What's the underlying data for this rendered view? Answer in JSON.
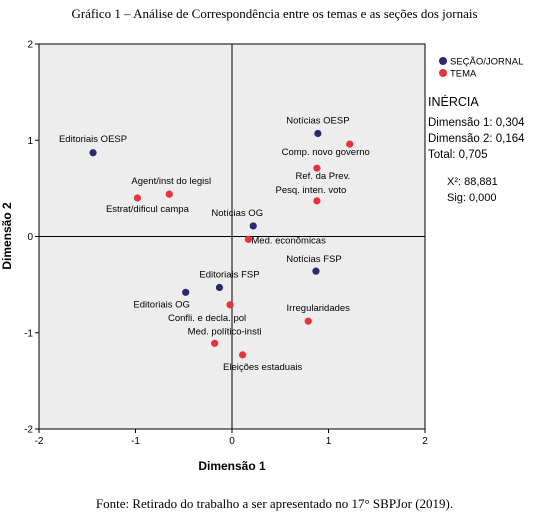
{
  "caption_top": "Gráfico 1 – Análise de Correspondência entre os temas e as seções dos jornais",
  "caption_bottom": "Fonte: Retirado do trabalho a ser apresentado no 17° SBPJor (2019).",
  "inertia": {
    "title": "INÉRCIA",
    "dim1": "Dimensão 1: 0,304",
    "dim2": "Dimensão 2: 0,164",
    "total": "Total: 0,705",
    "chi": "X²: 88,881",
    "sig": "Sig: 0,000"
  },
  "colors": {
    "secao": "#2a2a6e",
    "tema": "#e8323c",
    "plot_bg": "#ededed"
  },
  "chart_data": {
    "type": "scatter",
    "xlabel": "Dimensão 1",
    "ylabel": "Dimensão 2",
    "xlim": [
      -2,
      2
    ],
    "ylim": [
      -2,
      2
    ],
    "xticks": [
      "-2",
      "-1",
      "0",
      "1",
      "2"
    ],
    "yticks": [
      "2",
      "1",
      "0",
      "-1",
      "-2"
    ],
    "grid": false,
    "legend_position": "top-right",
    "series": [
      {
        "name": "SEÇÃO/JORNAL",
        "points": [
          {
            "label": "Editoriais OESP",
            "x": -1.44,
            "y": 0.87
          },
          {
            "label": "Notícias OESP",
            "x": 0.89,
            "y": 1.07
          },
          {
            "label": "Notícias OG",
            "x": 0.22,
            "y": 0.11
          },
          {
            "label": "Notícias FSP",
            "x": 0.87,
            "y": -0.36
          },
          {
            "label": "Editoriais FSP",
            "x": -0.13,
            "y": -0.53
          },
          {
            "label": "Editoriais OG",
            "x": -0.48,
            "y": -0.58
          }
        ]
      },
      {
        "name": "TEMA",
        "points": [
          {
            "label": "Comp. novo governo",
            "x": 1.22,
            "y": 0.96
          },
          {
            "label": "Ref. da Prev.",
            "x": 0.88,
            "y": 0.71
          },
          {
            "label": "Pesq. inten. voto",
            "x": 0.88,
            "y": 0.37
          },
          {
            "label": "Agent/inst do legisl",
            "x": -0.65,
            "y": 0.44
          },
          {
            "label": "Estrat/dificul campa",
            "x": -0.98,
            "y": 0.4
          },
          {
            "label": "Med. econômicas",
            "x": 0.17,
            "y": -0.03
          },
          {
            "label": "Confli. e decla. pol",
            "x": -0.02,
            "y": -0.71
          },
          {
            "label": "Irregularidades",
            "x": 0.79,
            "y": -0.88
          },
          {
            "label": "Med. político-insti",
            "x": -0.18,
            "y": -1.11
          },
          {
            "label": "Eleições estaduais",
            "x": 0.11,
            "y": -1.23
          }
        ]
      }
    ]
  }
}
